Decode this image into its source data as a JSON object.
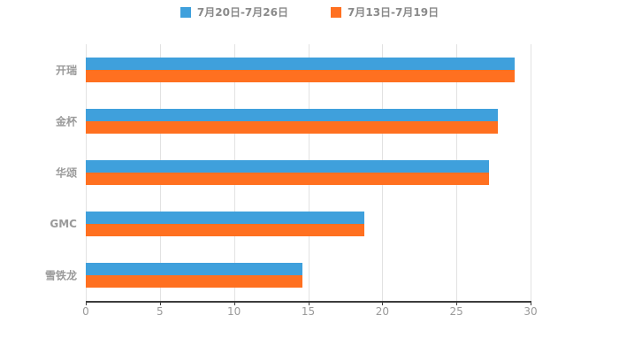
{
  "chart": {
    "legend": [
      {
        "label": "7月20日-7月26日",
        "color": "#3FA0DC"
      },
      {
        "label": "7月13日-7月19日",
        "color": "#FF7020"
      }
    ]
  },
  "chart_data": {
    "type": "bar",
    "orientation": "horizontal",
    "title": "",
    "xlabel": "",
    "ylabel": "",
    "categories": [
      "开瑞",
      "金杯",
      "华颂",
      "GMC",
      "雪铁龙"
    ],
    "series": [
      {
        "name": "7月20日-7月26日",
        "color": "#3FA0DC",
        "values": [
          28.9,
          27.8,
          27.2,
          18.8,
          14.6
        ]
      },
      {
        "name": "7月13日-7月19日",
        "color": "#FF7020",
        "values": [
          28.9,
          27.8,
          27.2,
          18.8,
          14.6
        ]
      }
    ],
    "xlim": [
      0,
      30
    ],
    "xticks": [
      0,
      5,
      10,
      15,
      20,
      25,
      30
    ],
    "grid": true,
    "legend_position": "top"
  }
}
